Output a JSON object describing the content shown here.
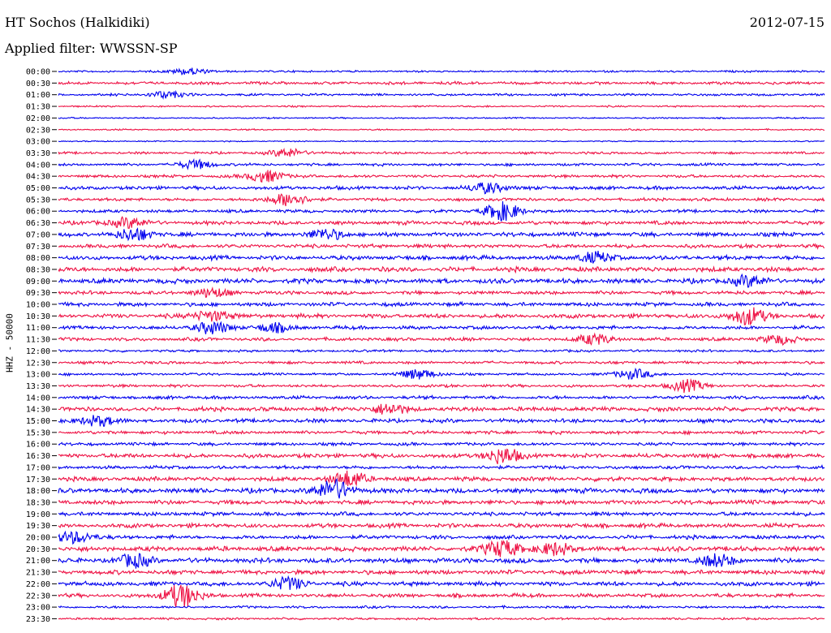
{
  "header": {
    "station": "HT Sochos (Halkidiki)",
    "date": "2012-07-15",
    "filter": "Applied filter: WWSSN-SP"
  },
  "chart_data": {
    "type": "line",
    "title": "HT Sochos (Halkidiki)",
    "ylabel": "HHZ - 50000",
    "xlabel": "",
    "colors": [
      "#0000ee",
      "#ee1144"
    ],
    "rows": [
      "00:00",
      "00:30",
      "01:00",
      "01:30",
      "02:00",
      "02:30",
      "03:00",
      "03:30",
      "04:00",
      "04:30",
      "05:00",
      "05:30",
      "06:00",
      "06:30",
      "07:00",
      "07:30",
      "08:00",
      "08:30",
      "09:00",
      "09:30",
      "10:00",
      "10:30",
      "11:00",
      "11:30",
      "12:00",
      "12:30",
      "13:00",
      "13:30",
      "14:00",
      "14:30",
      "15:00",
      "15:30",
      "16:00",
      "16:30",
      "17:00",
      "17:30",
      "18:00",
      "18:30",
      "19:00",
      "19:30",
      "20:00",
      "20:30",
      "21:00",
      "21:30",
      "22:00",
      "22:30",
      "23:00",
      "23:30"
    ],
    "noise_level": [
      0.8,
      1.2,
      1.0,
      0.7,
      0.6,
      0.6,
      0.5,
      1.0,
      1.1,
      1.2,
      1.5,
      1.3,
      1.3,
      1.6,
      1.8,
      1.6,
      1.8,
      2.0,
      2.0,
      1.5,
      1.6,
      1.8,
      1.5,
      1.4,
      1.0,
      1.2,
      1.0,
      1.2,
      1.4,
      1.8,
      1.6,
      1.4,
      1.3,
      1.8,
      1.4,
      1.8,
      2.0,
      1.8,
      1.6,
      1.8,
      1.6,
      2.0,
      2.0,
      1.8,
      1.8,
      1.6,
      1.0,
      0.9
    ],
    "events": [
      {
        "row": "00:00",
        "t": 0.17,
        "amp": 4
      },
      {
        "row": "01:00",
        "t": 0.14,
        "amp": 4
      },
      {
        "row": "03:30",
        "t": 0.3,
        "amp": 5
      },
      {
        "row": "04:00",
        "t": 0.18,
        "amp": 5
      },
      {
        "row": "04:30",
        "t": 0.27,
        "amp": 7
      },
      {
        "row": "05:00",
        "t": 0.56,
        "amp": 6
      },
      {
        "row": "05:30",
        "t": 0.3,
        "amp": 8
      },
      {
        "row": "06:00",
        "t": 0.58,
        "amp": 11
      },
      {
        "row": "06:30",
        "t": 0.09,
        "amp": 6
      },
      {
        "row": "07:00",
        "t": 0.1,
        "amp": 7
      },
      {
        "row": "07:00",
        "t": 0.35,
        "amp": 6
      },
      {
        "row": "08:00",
        "t": 0.7,
        "amp": 6
      },
      {
        "row": "09:00",
        "t": 0.9,
        "amp": 6
      },
      {
        "row": "09:30",
        "t": 0.2,
        "amp": 5
      },
      {
        "row": "10:30",
        "t": 0.9,
        "amp": 10
      },
      {
        "row": "10:30",
        "t": 0.2,
        "amp": 6
      },
      {
        "row": "11:00",
        "t": 0.2,
        "amp": 7
      },
      {
        "row": "11:00",
        "t": 0.28,
        "amp": 5
      },
      {
        "row": "11:30",
        "t": 0.7,
        "amp": 6
      },
      {
        "row": "11:30",
        "t": 0.94,
        "amp": 5
      },
      {
        "row": "13:00",
        "t": 0.47,
        "amp": 6
      },
      {
        "row": "13:00",
        "t": 0.75,
        "amp": 6
      },
      {
        "row": "13:30",
        "t": 0.82,
        "amp": 7
      },
      {
        "row": "14:30",
        "t": 0.43,
        "amp": 6
      },
      {
        "row": "15:00",
        "t": 0.05,
        "amp": 6
      },
      {
        "row": "16:30",
        "t": 0.58,
        "amp": 9
      },
      {
        "row": "17:30",
        "t": 0.38,
        "amp": 9
      },
      {
        "row": "18:00",
        "t": 0.36,
        "amp": 12
      },
      {
        "row": "20:00",
        "t": 0.02,
        "amp": 7
      },
      {
        "row": "20:30",
        "t": 0.58,
        "amp": 10
      },
      {
        "row": "20:30",
        "t": 0.65,
        "amp": 7
      },
      {
        "row": "21:00",
        "t": 0.1,
        "amp": 7
      },
      {
        "row": "21:00",
        "t": 0.86,
        "amp": 7
      },
      {
        "row": "22:00",
        "t": 0.3,
        "amp": 7
      },
      {
        "row": "22:30",
        "t": 0.16,
        "amp": 14
      }
    ]
  }
}
